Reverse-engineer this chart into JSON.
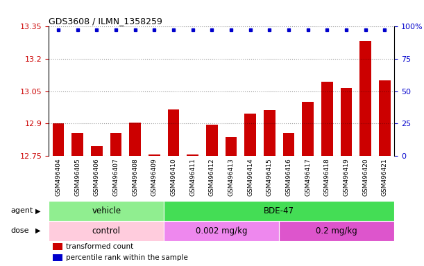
{
  "title": "GDS3608 / ILMN_1358259",
  "samples": [
    "GSM496404",
    "GSM496405",
    "GSM496406",
    "GSM496407",
    "GSM496408",
    "GSM496409",
    "GSM496410",
    "GSM496411",
    "GSM496412",
    "GSM496413",
    "GSM496414",
    "GSM496415",
    "GSM496416",
    "GSM496417",
    "GSM496418",
    "GSM496419",
    "GSM496420",
    "GSM496421"
  ],
  "bar_values": [
    12.9,
    12.855,
    12.795,
    12.855,
    12.905,
    12.755,
    12.965,
    12.755,
    12.895,
    12.835,
    12.945,
    12.96,
    12.855,
    13.0,
    13.095,
    13.065,
    13.285,
    13.1
  ],
  "ymin": 12.75,
  "ymax": 13.35,
  "yticks": [
    12.75,
    12.9,
    13.05,
    13.2,
    13.35
  ],
  "ytick_labels": [
    "12.75",
    "12.9",
    "13.05",
    "13.2",
    "13.35"
  ],
  "right_yticks": [
    0,
    25,
    50,
    75,
    100
  ],
  "right_ytick_labels": [
    "0",
    "25",
    "50",
    "75",
    "100%"
  ],
  "bar_color": "#CC0000",
  "dot_color": "#0000CC",
  "left_tick_color": "#CC0000",
  "right_tick_color": "#0000CC",
  "agent_groups": [
    {
      "label": "vehicle",
      "start": 0,
      "end": 6,
      "color": "#90EE90"
    },
    {
      "label": "BDE-47",
      "start": 6,
      "end": 18,
      "color": "#44DD55"
    }
  ],
  "dose_groups": [
    {
      "label": "control",
      "start": 0,
      "end": 6,
      "color": "#FFCCDD"
    },
    {
      "label": "0.002 mg/kg",
      "start": 6,
      "end": 12,
      "color": "#EE88EE"
    },
    {
      "label": "0.2 mg/kg",
      "start": 12,
      "end": 18,
      "color": "#DD55CC"
    }
  ],
  "legend_items": [
    {
      "color": "#CC0000",
      "label": "transformed count"
    },
    {
      "color": "#0000CC",
      "label": "percentile rank within the sample"
    }
  ],
  "bg_gray": "#E8E8E8",
  "grid_linestyle": ":"
}
